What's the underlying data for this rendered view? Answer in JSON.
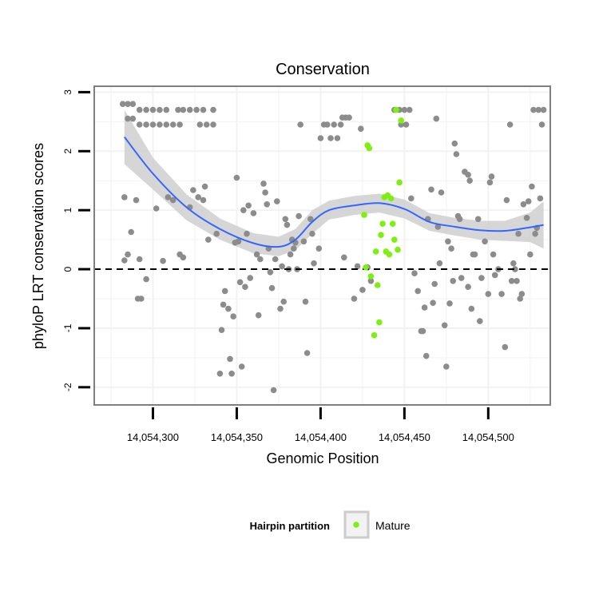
{
  "chart_data": {
    "type": "scatter",
    "title": "Conservation",
    "xlabel": "Genomic Position",
    "ylabel": "phyloP LRT conservation scores",
    "xlim": [
      14054265,
      14054537
    ],
    "ylim": [
      -2.3,
      3.1
    ],
    "x_ticks": [
      14054300,
      14054350,
      14054400,
      14054450,
      14054500
    ],
    "x_tick_labels": [
      "14,054,300",
      "14,054,350",
      "14,054,400",
      "14,054,450",
      "14,054,500"
    ],
    "y_ticks": [
      -2,
      -1,
      0,
      1,
      2,
      3
    ],
    "y_tick_labels": [
      "-2",
      "-1",
      "0",
      "1",
      "2",
      "3"
    ],
    "grid": true,
    "reference_line": {
      "y": 0,
      "style": "dashed"
    },
    "legend": {
      "title": "Hairpin partition",
      "entries": [
        "Mature"
      ],
      "position": "bottom"
    },
    "colors": {
      "other": "#8c8c8c",
      "mature": "#7fef11",
      "smooth": "#3366ff",
      "band": "#cccccc",
      "grid": "#f2f2f2",
      "panel_border": "#7f7f7f"
    },
    "series": [
      {
        "points": [
          [
            14054282,
            2.8
          ],
          [
            14054285,
            2.8
          ],
          [
            14054288,
            2.8
          ],
          [
            14054285,
            2.55
          ],
          [
            14054288,
            2.55
          ],
          [
            14054292,
            2.7
          ],
          [
            14054296,
            2.7
          ],
          [
            14054300,
            2.7
          ],
          [
            14054304,
            2.7
          ],
          [
            14054308,
            2.7
          ],
          [
            14054315,
            2.7
          ],
          [
            14054318,
            2.7
          ],
          [
            14054322,
            2.7
          ],
          [
            14054326,
            2.7
          ],
          [
            14054330,
            2.7
          ],
          [
            14054336,
            2.7
          ],
          [
            14054292,
            2.45
          ],
          [
            14054296,
            2.45
          ],
          [
            14054300,
            2.45
          ],
          [
            14054304,
            2.45
          ],
          [
            14054308,
            2.45
          ],
          [
            14054312,
            2.45
          ],
          [
            14054316,
            2.45
          ],
          [
            14054328,
            2.45
          ],
          [
            14054332,
            2.45
          ],
          [
            14054336,
            2.45
          ],
          [
            14054283,
            1.22
          ],
          [
            14054285,
            0.25
          ],
          [
            14054283,
            0.15
          ],
          [
            14054287,
            0.63
          ],
          [
            14054290,
            1.17
          ],
          [
            14054291,
            -0.5
          ],
          [
            14054293,
            -0.5
          ],
          [
            14054292,
            0.17
          ],
          [
            14054296,
            -0.17
          ],
          [
            14054302,
            1.03
          ],
          [
            14054306,
            0.14
          ],
          [
            14054309,
            1.22
          ],
          [
            14054312,
            1.17
          ],
          [
            14054316,
            0.25
          ],
          [
            14054318,
            0.2
          ],
          [
            14054322,
            1.05
          ],
          [
            14054324,
            1.34
          ],
          [
            14054327,
            1.22
          ],
          [
            14054330,
            1.17
          ],
          [
            14054331,
            1.4
          ],
          [
            14054333,
            0.5
          ],
          [
            14054338,
            0.6
          ],
          [
            14054340,
            -1.77
          ],
          [
            14054341,
            -1.03
          ],
          [
            14054342,
            -0.6
          ],
          [
            14054343,
            -0.37
          ],
          [
            14054345,
            -0.67
          ],
          [
            14054346,
            -1.52
          ],
          [
            14054347,
            -1.77
          ],
          [
            14054348,
            -0.8
          ],
          [
            14054349,
            0.45
          ],
          [
            14054350,
            1.55
          ],
          [
            14054351,
            0.47
          ],
          [
            14054352,
            -0.22
          ],
          [
            14054353,
            -1.65
          ],
          [
            14054354,
            1.0
          ],
          [
            14054355,
            -0.3
          ],
          [
            14054356,
            0.6
          ],
          [
            14054357,
            1.08
          ],
          [
            14054358,
            -0.15
          ],
          [
            14054360,
            0.95
          ],
          [
            14054362,
            0.25
          ],
          [
            14054363,
            -0.78
          ],
          [
            14054364,
            0.17
          ],
          [
            14054366,
            1.45
          ],
          [
            14054367,
            1.3
          ],
          [
            14054368,
            1.1
          ],
          [
            14054369,
            0.35
          ],
          [
            14054370,
            -0.05
          ],
          [
            14054371,
            -0.32
          ],
          [
            14054372,
            -2.05
          ],
          [
            14054373,
            0.17
          ],
          [
            14054374,
            1.15
          ],
          [
            14054376,
            -0.67
          ],
          [
            14054377,
            0.05
          ],
          [
            14054378,
            -0.55
          ],
          [
            14054379,
            0.85
          ],
          [
            14054380,
            0.75
          ],
          [
            14054381,
            0.0
          ],
          [
            14054382,
            0.25
          ],
          [
            14054383,
            0.5
          ],
          [
            14054384,
            0.35
          ],
          [
            14054385,
            0.45
          ],
          [
            14054386,
            -0.0
          ],
          [
            14054387,
            0.9
          ],
          [
            14054388,
            2.45
          ],
          [
            14054390,
            0.47
          ],
          [
            14054391,
            -0.55
          ],
          [
            14054392,
            -1.42
          ],
          [
            14054394,
            0.85
          ],
          [
            14054395,
            0.6
          ],
          [
            14054396,
            0.1
          ],
          [
            14054399,
            0.35
          ],
          [
            14054400,
            2.22
          ],
          [
            14054402,
            2.45
          ],
          [
            14054404,
            2.45
          ],
          [
            14054406,
            2.22
          ],
          [
            14054408,
            2.45
          ],
          [
            14054410,
            2.22
          ],
          [
            14054412,
            2.45
          ],
          [
            14054413,
            2.57
          ],
          [
            14054415,
            2.57
          ],
          [
            14054417,
            2.57
          ],
          [
            14054414,
            0.2
          ],
          [
            14054420,
            -0.5
          ],
          [
            14054422,
            0.05
          ],
          [
            14054424,
            2.38
          ],
          [
            14054425,
            -0.35
          ],
          [
            14054428,
            0.03
          ],
          [
            14054430,
            -0.2
          ],
          [
            14054444,
            2.7
          ],
          [
            14054447,
            2.7
          ],
          [
            14054450,
            2.7
          ],
          [
            14054453,
            2.7
          ],
          [
            14054448,
            2.45
          ],
          [
            14054451,
            2.45
          ],
          [
            14054454,
            1.2
          ],
          [
            14054456,
            -0.07
          ],
          [
            14054458,
            -0.37
          ],
          [
            14054460,
            -1.05
          ],
          [
            14054461,
            -1.05
          ],
          [
            14054462,
            -0.65
          ],
          [
            14054463,
            -1.47
          ],
          [
            14054464,
            0.85
          ],
          [
            14054466,
            1.35
          ],
          [
            14054467,
            -0.57
          ],
          [
            14054468,
            -0.25
          ],
          [
            14054469,
            2.55
          ],
          [
            14054470,
            0.72
          ],
          [
            14054471,
            0.1
          ],
          [
            14054472,
            1.3
          ],
          [
            14054474,
            -0.95
          ],
          [
            14054475,
            -1.65
          ],
          [
            14054476,
            0.47
          ],
          [
            14054477,
            -0.58
          ],
          [
            14054478,
            0.35
          ],
          [
            14054479,
            -0.2
          ],
          [
            14054480,
            2.13
          ],
          [
            14054481,
            1.95
          ],
          [
            14054482,
            0.9
          ],
          [
            14054483,
            0.85
          ],
          [
            14054484,
            -0.15
          ],
          [
            14054486,
            1.65
          ],
          [
            14054488,
            1.6
          ],
          [
            14054488,
            -0.3
          ],
          [
            14054489,
            1.5
          ],
          [
            14054490,
            -0.67
          ],
          [
            14054491,
            0.25
          ],
          [
            14054492,
            0.25
          ],
          [
            14054494,
            0.85
          ],
          [
            14054495,
            -0.88
          ],
          [
            14054496,
            -0.15
          ],
          [
            14054498,
            0.47
          ],
          [
            14054500,
            -0.42
          ],
          [
            14054501,
            1.47
          ],
          [
            14054502,
            1.57
          ],
          [
            14054503,
            0.25
          ],
          [
            14054504,
            -0.1
          ],
          [
            14054506,
            0.0
          ],
          [
            14054508,
            -0.42
          ],
          [
            14054510,
            -1.32
          ],
          [
            14054511,
            1.17
          ],
          [
            14054513,
            2.45
          ],
          [
            14054514,
            -0.2
          ],
          [
            14054515,
            0.1
          ],
          [
            14054516,
            0.0
          ],
          [
            14054517,
            -0.2
          ],
          [
            14054518,
            0.6
          ],
          [
            14054519,
            -0.5
          ],
          [
            14054520,
            -0.42
          ],
          [
            14054521,
            1.1
          ],
          [
            14054523,
            0.87
          ],
          [
            14054524,
            1.15
          ],
          [
            14054525,
            0.25
          ],
          [
            14054526,
            1.4
          ],
          [
            14054527,
            2.7
          ],
          [
            14054528,
            0.6
          ],
          [
            14054529,
            0.7
          ],
          [
            14054530,
            2.7
          ],
          [
            14054531,
            1.2
          ],
          [
            14054532,
            2.45
          ],
          [
            14054533,
            2.7
          ]
        ]
      },
      {
        "name": "Mature",
        "points": [
          [
            14054426,
            0.92
          ],
          [
            14054427,
            0.03
          ],
          [
            14054428,
            2.1
          ],
          [
            14054429,
            2.05
          ],
          [
            14054430,
            -0.12
          ],
          [
            14054432,
            -1.12
          ],
          [
            14054433,
            0.3
          ],
          [
            14054434,
            -0.27
          ],
          [
            14054435,
            -0.9
          ],
          [
            14054436,
            0.58
          ],
          [
            14054437,
            0.77
          ],
          [
            14054438,
            1.22
          ],
          [
            14054439,
            0.3
          ],
          [
            14054440,
            1.25
          ],
          [
            14054441,
            0.25
          ],
          [
            14054442,
            1.2
          ],
          [
            14054443,
            0.77
          ],
          [
            14054444,
            0.5
          ],
          [
            14054445,
            2.7
          ],
          [
            14054446,
            0.33
          ],
          [
            14054447,
            1.47
          ],
          [
            14054448,
            2.52
          ]
        ]
      }
    ],
    "smooth": [
      {
        "x": 14054283,
        "y": 2.24,
        "lo": 1.78,
        "hi": 2.7
      },
      {
        "x": 14054300,
        "y": 1.62,
        "lo": 1.35,
        "hi": 1.89
      },
      {
        "x": 14054320,
        "y": 1.05,
        "lo": 0.83,
        "hi": 1.27
      },
      {
        "x": 14054340,
        "y": 0.68,
        "lo": 0.5,
        "hi": 0.86
      },
      {
        "x": 14054360,
        "y": 0.44,
        "lo": 0.27,
        "hi": 0.61
      },
      {
        "x": 14054375,
        "y": 0.38,
        "lo": 0.22,
        "hi": 0.55
      },
      {
        "x": 14054385,
        "y": 0.5,
        "lo": 0.32,
        "hi": 0.68
      },
      {
        "x": 14054395,
        "y": 0.8,
        "lo": 0.6,
        "hi": 1.0
      },
      {
        "x": 14054405,
        "y": 1.0,
        "lo": 0.84,
        "hi": 1.16
      },
      {
        "x": 14054420,
        "y": 1.08,
        "lo": 0.92,
        "hi": 1.24
      },
      {
        "x": 14054435,
        "y": 1.12,
        "lo": 0.96,
        "hi": 1.28
      },
      {
        "x": 14054450,
        "y": 1.02,
        "lo": 0.86,
        "hi": 1.18
      },
      {
        "x": 14054465,
        "y": 0.8,
        "lo": 0.65,
        "hi": 0.95
      },
      {
        "x": 14054480,
        "y": 0.72,
        "lo": 0.57,
        "hi": 0.87
      },
      {
        "x": 14054495,
        "y": 0.66,
        "lo": 0.5,
        "hi": 0.82
      },
      {
        "x": 14054510,
        "y": 0.65,
        "lo": 0.48,
        "hi": 0.82
      },
      {
        "x": 14054525,
        "y": 0.71,
        "lo": 0.46,
        "hi": 0.96
      },
      {
        "x": 14054533,
        "y": 0.75,
        "lo": 0.35,
        "hi": 1.15
      }
    ]
  }
}
